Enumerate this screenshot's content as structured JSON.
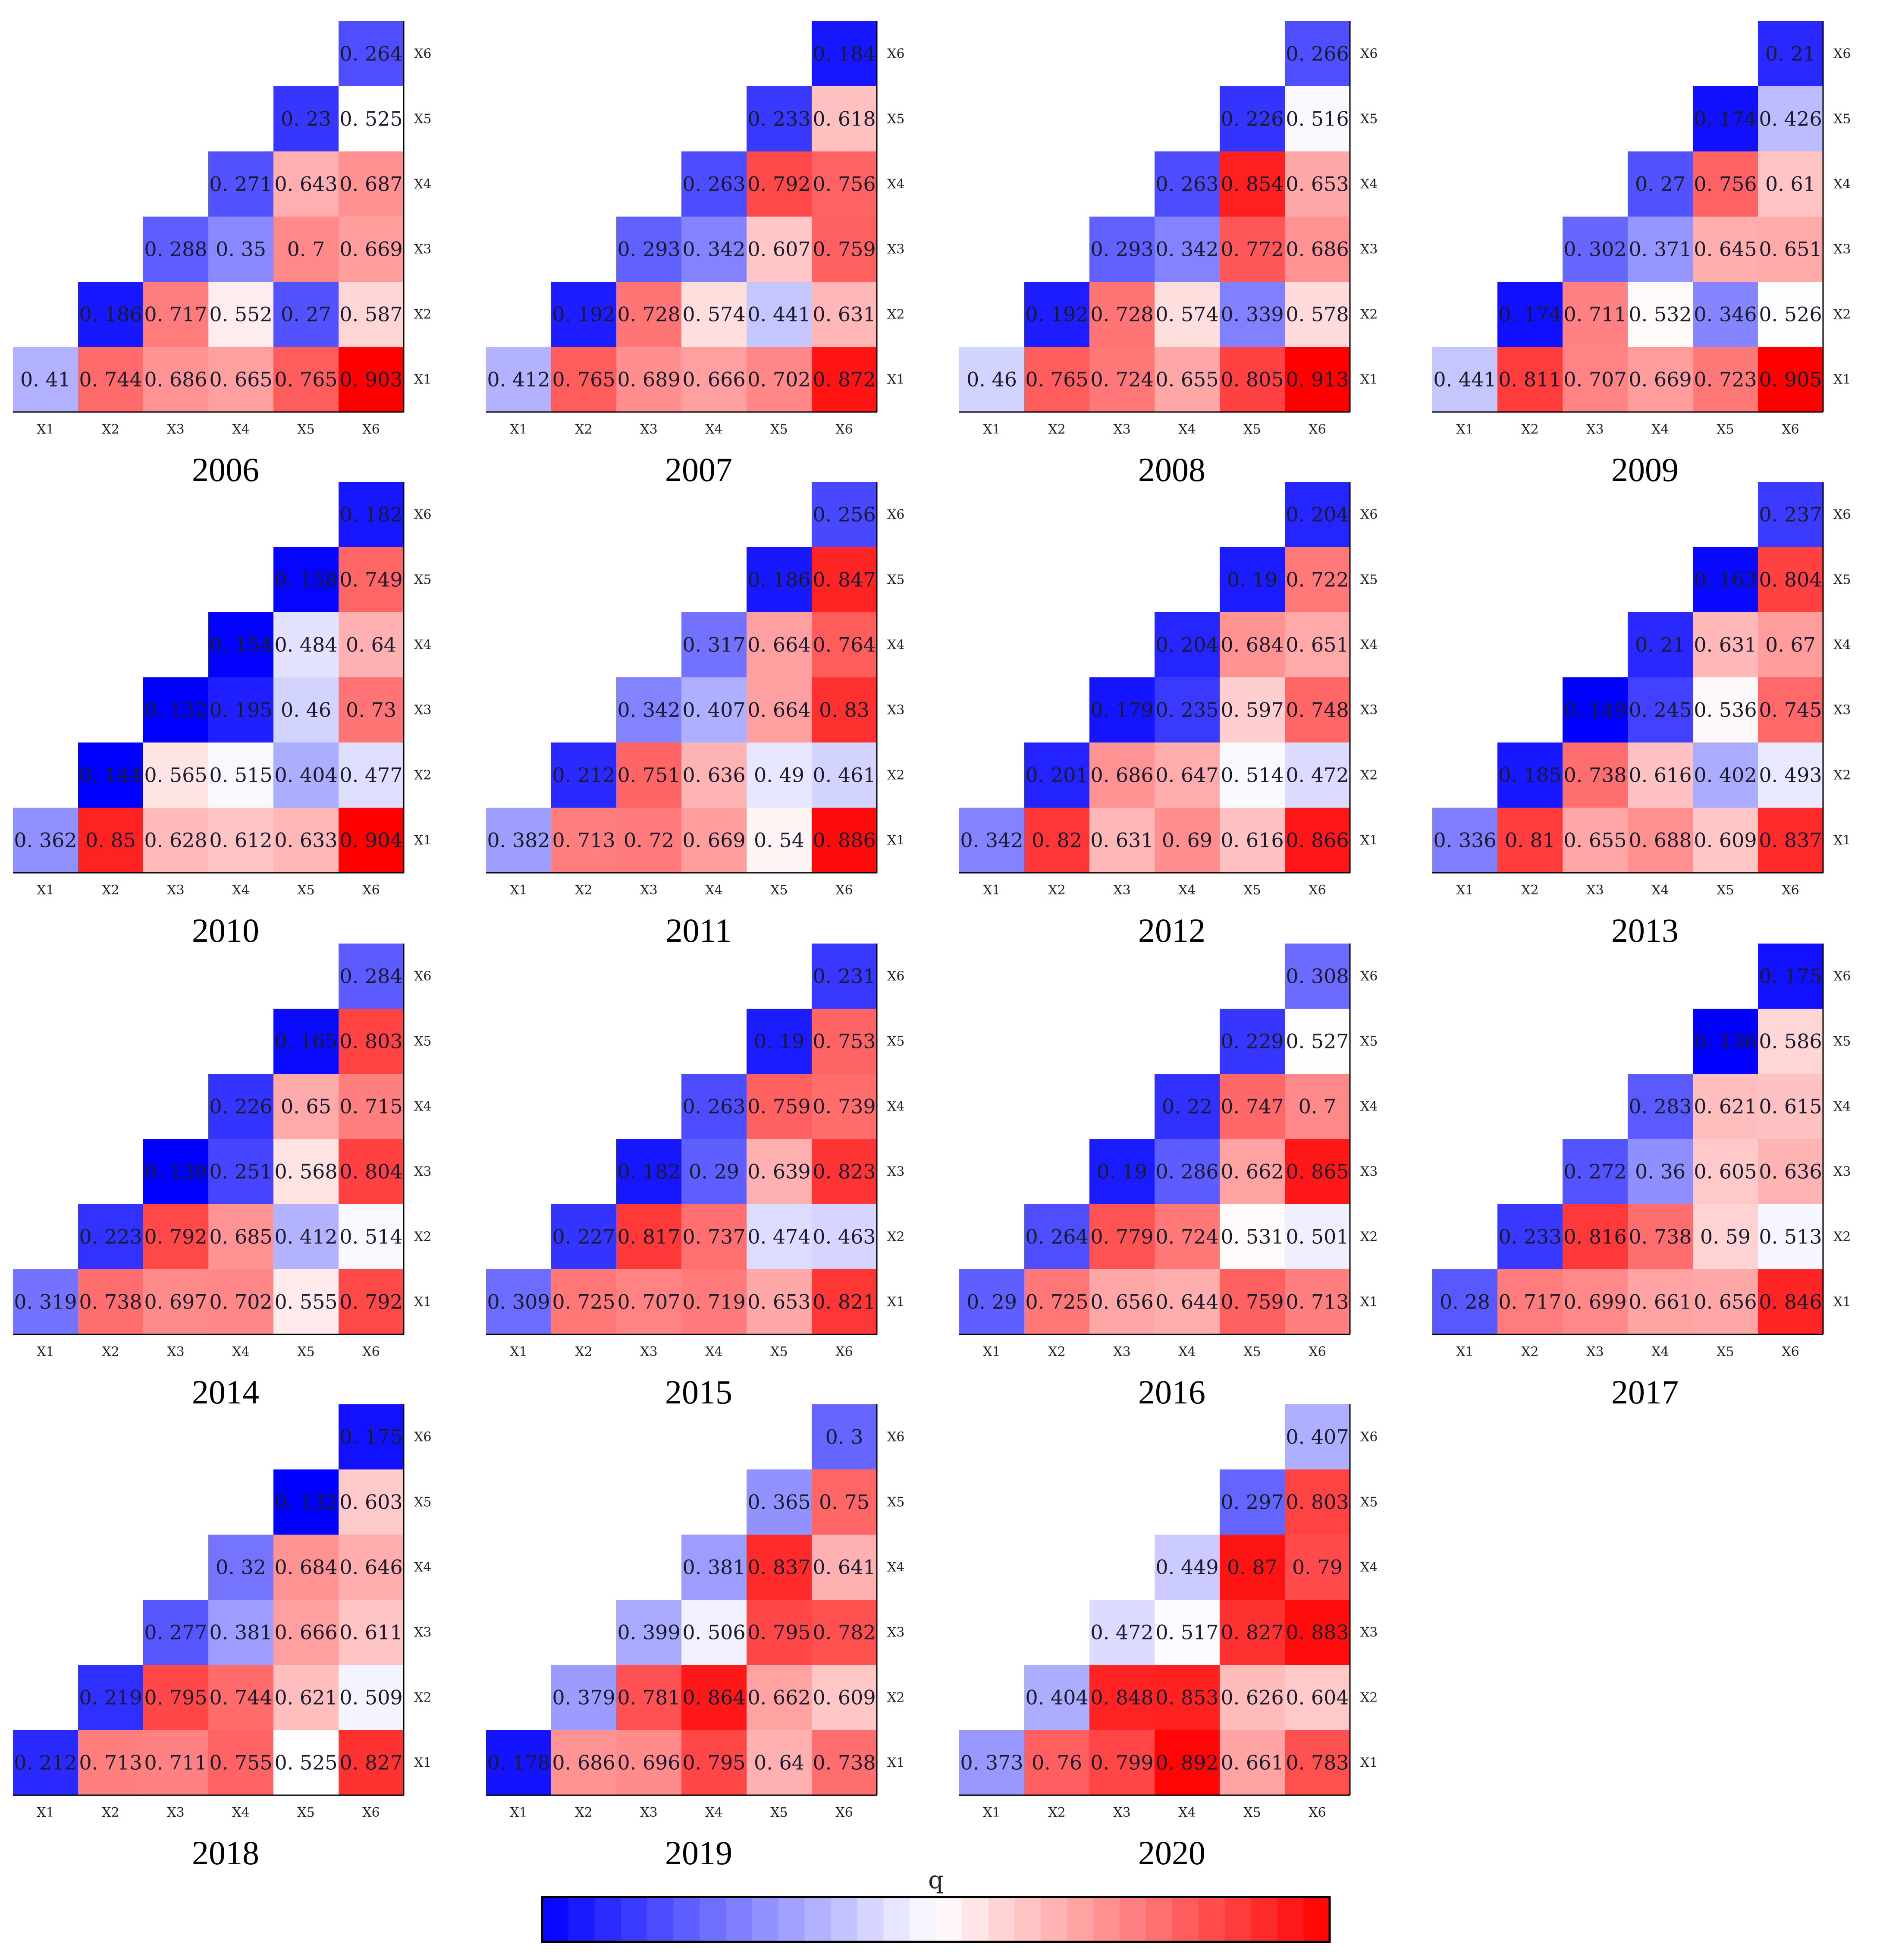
{
  "chart_data": {
    "type": "heatmap",
    "variables": [
      "X1",
      "X2",
      "X3",
      "X4",
      "X5",
      "X6"
    ],
    "description_of_matrix": "Lower-left triangular matrix; row r lists values for columns X1..X_(7-r) where rows are X1 (bottom) to X6 (top)",
    "colormap": {
      "low_color": "#0000ff",
      "mid_color": "#ffffff",
      "high_color": "#ff0000",
      "min": 0.15,
      "max": 0.9
    },
    "colorbar": {
      "label": "q",
      "segments": 30
    },
    "panels": [
      {
        "year": "2006",
        "rows": {
          "X1": [
            "0.41",
            "0.744",
            "0.686",
            "0.665",
            "0.765",
            "0.903"
          ],
          "X2": [
            "0.186",
            "0.717",
            "0.552",
            "0.27",
            "0.587"
          ],
          "X3": [
            "0.288",
            "0.35",
            "0.7",
            "0.669"
          ],
          "X4": [
            "0.271",
            "0.643",
            "0.687"
          ],
          "X5": [
            "0.23",
            "0.525"
          ],
          "X6": [
            "0.264"
          ]
        }
      },
      {
        "year": "2007",
        "rows": {
          "X1": [
            "0.412",
            "0.765",
            "0.689",
            "0.666",
            "0.702",
            "0.872"
          ],
          "X2": [
            "0.192",
            "0.728",
            "0.574",
            "0.441",
            "0.631"
          ],
          "X3": [
            "0.293",
            "0.342",
            "0.607",
            "0.759"
          ],
          "X4": [
            "0.263",
            "0.792",
            "0.756"
          ],
          "X5": [
            "0.233",
            "0.618"
          ],
          "X6": [
            "0.184"
          ]
        }
      },
      {
        "year": "2008",
        "rows": {
          "X1": [
            "0.46",
            "0.765",
            "0.724",
            "0.655",
            "0.805",
            "0.913"
          ],
          "X2": [
            "0.192",
            "0.728",
            "0.574",
            "0.339",
            "0.578"
          ],
          "X3": [
            "0.293",
            "0.342",
            "0.772",
            "0.686"
          ],
          "X4": [
            "0.263",
            "0.854",
            "0.653"
          ],
          "X5": [
            "0.226",
            "0.516"
          ],
          "X6": [
            "0.266"
          ]
        }
      },
      {
        "year": "2009",
        "rows": {
          "X1": [
            "0.441",
            "0.811",
            "0.707",
            "0.669",
            "0.723",
            "0.905"
          ],
          "X2": [
            "0.174",
            "0.711",
            "0.532",
            "0.346",
            "0.526"
          ],
          "X3": [
            "0.302",
            "0.371",
            "0.645",
            "0.651"
          ],
          "X4": [
            "0.27",
            "0.756",
            "0.61"
          ],
          "X5": [
            "0.174",
            "0.426"
          ],
          "X6": [
            "0.21"
          ]
        }
      },
      {
        "year": "2010",
        "rows": {
          "X1": [
            "0.362",
            "0.85",
            "0.628",
            "0.612",
            "0.633",
            "0.904"
          ],
          "X2": [
            "0.144",
            "0.565",
            "0.515",
            "0.404",
            "0.477"
          ],
          "X3": [
            "0.132",
            "0.195",
            "0.46",
            "0.73"
          ],
          "X4": [
            "0.154",
            "0.484",
            "0.64"
          ],
          "X5": [
            "0.158",
            "0.749"
          ],
          "X6": [
            "0.182"
          ]
        }
      },
      {
        "year": "2011",
        "rows": {
          "X1": [
            "0.382",
            "0.713",
            "0.72",
            "0.669",
            "0.54",
            "0.886"
          ],
          "X2": [
            "0.212",
            "0.751",
            "0.636",
            "0.49",
            "0.461"
          ],
          "X3": [
            "0.342",
            "0.407",
            "0.664",
            "0.83"
          ],
          "X4": [
            "0.317",
            "0.664",
            "0.764"
          ],
          "X5": [
            "0.186",
            "0.847"
          ],
          "X6": [
            "0.256"
          ]
        }
      },
      {
        "year": "2012",
        "rows": {
          "X1": [
            "0.342",
            "0.82",
            "0.631",
            "0.69",
            "0.616",
            "0.866"
          ],
          "X2": [
            "0.201",
            "0.686",
            "0.647",
            "0.514",
            "0.472"
          ],
          "X3": [
            "0.179",
            "0.235",
            "0.597",
            "0.748"
          ],
          "X4": [
            "0.204",
            "0.684",
            "0.651"
          ],
          "X5": [
            "0.19",
            "0.722"
          ],
          "X6": [
            "0.204"
          ]
        }
      },
      {
        "year": "2013",
        "rows": {
          "X1": [
            "0.336",
            "0.81",
            "0.655",
            "0.688",
            "0.609",
            "0.837"
          ],
          "X2": [
            "0.185",
            "0.738",
            "0.616",
            "0.402",
            "0.493"
          ],
          "X3": [
            "0.149",
            "0.245",
            "0.536",
            "0.745"
          ],
          "X4": [
            "0.21",
            "0.631",
            "0.67"
          ],
          "X5": [
            "0.163",
            "0.804"
          ],
          "X6": [
            "0.237"
          ]
        }
      },
      {
        "year": "2014",
        "rows": {
          "X1": [
            "0.319",
            "0.738",
            "0.697",
            "0.702",
            "0.555",
            "0.792"
          ],
          "X2": [
            "0.223",
            "0.792",
            "0.685",
            "0.412",
            "0.514"
          ],
          "X3": [
            "0.139",
            "0.251",
            "0.568",
            "0.804"
          ],
          "X4": [
            "0.226",
            "0.65",
            "0.715"
          ],
          "X5": [
            "0.165",
            "0.803"
          ],
          "X6": [
            "0.284"
          ]
        }
      },
      {
        "year": "2015",
        "rows": {
          "X1": [
            "0.309",
            "0.725",
            "0.707",
            "0.719",
            "0.653",
            "0.821"
          ],
          "X2": [
            "0.227",
            "0.817",
            "0.737",
            "0.474",
            "0.463"
          ],
          "X3": [
            "0.182",
            "0.29",
            "0.639",
            "0.823"
          ],
          "X4": [
            "0.263",
            "0.759",
            "0.739"
          ],
          "X5": [
            "0.19",
            "0.753"
          ],
          "X6": [
            "0.231"
          ]
        }
      },
      {
        "year": "2016",
        "rows": {
          "X1": [
            "0.29",
            "0.725",
            "0.656",
            "0.644",
            "0.759",
            "0.713"
          ],
          "X2": [
            "0.264",
            "0.779",
            "0.724",
            "0.531",
            "0.501"
          ],
          "X3": [
            "0.19",
            "0.286",
            "0.662",
            "0.865"
          ],
          "X4": [
            "0.22",
            "0.747",
            "0.7"
          ],
          "X5": [
            "0.229",
            "0.527"
          ],
          "X6": [
            "0.308"
          ]
        }
      },
      {
        "year": "2017",
        "rows": {
          "X1": [
            "0.28",
            "0.717",
            "0.699",
            "0.661",
            "0.656",
            "0.846"
          ],
          "X2": [
            "0.233",
            "0.816",
            "0.738",
            "0.59",
            "0.513"
          ],
          "X3": [
            "0.272",
            "0.36",
            "0.605",
            "0.636"
          ],
          "X4": [
            "0.283",
            "0.621",
            "0.615"
          ],
          "X5": [
            "0.136",
            "0.586"
          ],
          "X6": [
            "0.175"
          ]
        }
      },
      {
        "year": "2018",
        "rows": {
          "X1": [
            "0.212",
            "0.713",
            "0.711",
            "0.755",
            "0.525",
            "0.827"
          ],
          "X2": [
            "0.219",
            "0.795",
            "0.744",
            "0.621",
            "0.509"
          ],
          "X3": [
            "0.277",
            "0.381",
            "0.666",
            "0.611"
          ],
          "X4": [
            "0.32",
            "0.684",
            "0.646"
          ],
          "X5": [
            "0.132",
            "0.603"
          ],
          "X6": [
            "0.175"
          ]
        }
      },
      {
        "year": "2019",
        "rows": {
          "X1": [
            "0.178",
            "0.686",
            "0.696",
            "0.795",
            "0.64",
            "0.738"
          ],
          "X2": [
            "0.379",
            "0.781",
            "0.864",
            "0.662",
            "0.609"
          ],
          "X3": [
            "0.399",
            "0.506",
            "0.795",
            "0.782"
          ],
          "X4": [
            "0.381",
            "0.837",
            "0.641"
          ],
          "X5": [
            "0.365",
            "0.75"
          ],
          "X6": [
            "0.3"
          ]
        }
      },
      {
        "year": "2020",
        "rows": {
          "X1": [
            "0.373",
            "0.76",
            "0.799",
            "0.892",
            "0.661",
            "0.783"
          ],
          "X2": [
            "0.404",
            "0.848",
            "0.853",
            "0.626",
            "0.604"
          ],
          "X3": [
            "0.472",
            "0.517",
            "0.827",
            "0.883"
          ],
          "X4": [
            "0.449",
            "0.87",
            "0.79"
          ],
          "X5": [
            "0.297",
            "0.803"
          ],
          "X6": [
            "0.407"
          ]
        }
      }
    ]
  }
}
